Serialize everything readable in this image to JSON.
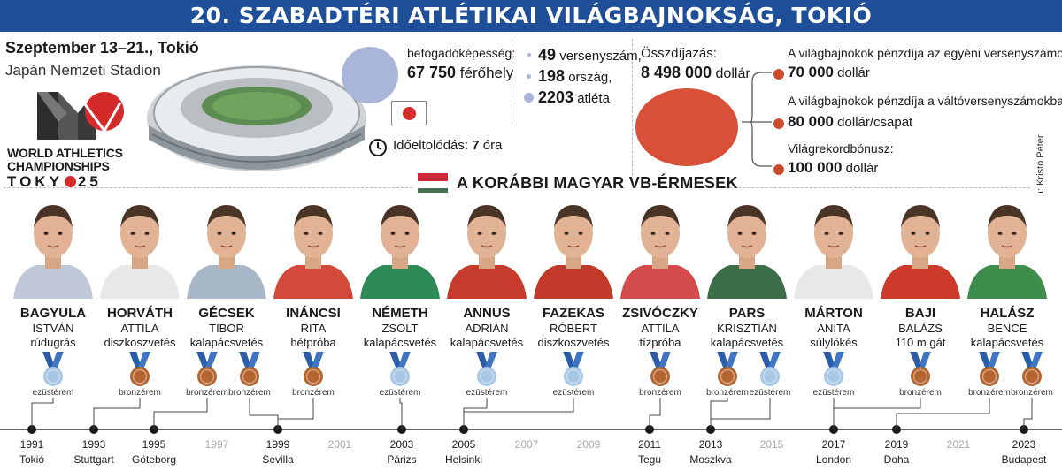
{
  "header": {
    "title": "20. SZABADTÉRI ATLÉTIKAI VILÁGBAJNOKSÁG, TOKIÓ"
  },
  "event": {
    "dates": "Szeptember 13–21., Tokió",
    "venue": "Japán Nemzeti Stadion"
  },
  "logo": {
    "line1": "WORLD ATHLETICS",
    "line2": "CHAMPIONSHIPS",
    "tokyo_left": "TOKY",
    "tokyo_right": "25"
  },
  "capacity": {
    "label": "befogadóképesség:",
    "value": "67 750",
    "unit": "férőhely"
  },
  "timezone": {
    "label": "Időeltolódás:",
    "value": "7",
    "unit": "óra"
  },
  "stats": {
    "events_value": "49",
    "events_label": "versenyszám,",
    "countries_value": "198",
    "countries_label": "ország,",
    "athletes_value": "2203",
    "athletes_label": "atléta"
  },
  "prize": {
    "title": "Összdíjazás:",
    "total_value": "8 498 000",
    "total_unit": "dollár",
    "items": [
      {
        "label": "A világbajnokok pénzdíja az egyéni versenyszámokban:",
        "value": "70 000",
        "unit": "dollár"
      },
      {
        "label": "A világbajnokok pénzdíja a váltóversenyszámokban:",
        "value": "80 000",
        "unit": "dollár/csapat"
      },
      {
        "label": "Világrekordbónusz:",
        "value": "100 000",
        "unit": "dollár"
      }
    ]
  },
  "credit": "NS-grafika: Kristó Péter",
  "medalists_title": "A KORÁBBI MAGYAR VB-ÉRMESEK",
  "athletes": [
    {
      "last": "BAGYULA",
      "first": "ISTVÁN",
      "event": "rúdugrás"
    },
    {
      "last": "HORVÁTH",
      "first": "ATTILA",
      "event": "diszkoszvetés"
    },
    {
      "last": "GÉCSEK",
      "first": "TIBOR",
      "event": "kalapácsvetés"
    },
    {
      "last": "INÁNCSI",
      "first": "RITA",
      "event": "hétpróba"
    },
    {
      "last": "NÉMETH",
      "first": "ZSOLT",
      "event": "kalapácsvetés"
    },
    {
      "last": "ANNUS",
      "first": "ADRIÁN",
      "event": "kalapácsvetés"
    },
    {
      "last": "FAZEKAS",
      "first": "RÓBERT",
      "event": "diszkoszvetés"
    },
    {
      "last": "ZSIVÓCZKY",
      "first": "ATTILA",
      "event": "tízpróba"
    },
    {
      "last": "PARS",
      "first": "KRISZTIÁN",
      "event": "kalapácsvetés"
    },
    {
      "last": "MÁRTON",
      "first": "ANITA",
      "event": "súlylökés"
    },
    {
      "last": "BAJI",
      "first": "BALÁZS",
      "event": "110 m gát"
    },
    {
      "last": "HALÁSZ",
      "first": "BENCE",
      "event": "kalapácsvetés"
    }
  ],
  "medals": [
    {
      "type": "silver",
      "label": "ezüstérem"
    },
    {
      "type": "bronze",
      "label": "bronzérem"
    },
    {
      "type": "bronze",
      "label": "bronzérem"
    },
    {
      "type": "bronze",
      "label": "bronzérem"
    },
    {
      "type": "bronze",
      "label": "bronzérem"
    },
    {
      "type": "silver",
      "label": "ezüstérem"
    },
    {
      "type": "silver",
      "label": "ezüstérem"
    },
    {
      "type": "silver",
      "label": "ezüstérem"
    },
    {
      "type": "bronze",
      "label": "bronzérem"
    },
    {
      "type": "bronze",
      "label": "bronzérem"
    },
    {
      "type": "silver",
      "label": "ezüstérem"
    },
    {
      "type": "silver",
      "label": "ezüstérem"
    },
    {
      "type": "bronze",
      "label": "bronzérem"
    },
    {
      "type": "bronze",
      "label": "bronzérem"
    },
    {
      "type": "bronze",
      "label": "bronzérem"
    }
  ],
  "timeline": [
    {
      "year": "1991",
      "city": "Tokió",
      "active": true
    },
    {
      "year": "1993",
      "city": "Stuttgart",
      "active": true
    },
    {
      "year": "1995",
      "city": "Göteborg",
      "active": true
    },
    {
      "year": "1997",
      "city": "",
      "active": false
    },
    {
      "year": "1999",
      "city": "Sevilla",
      "active": true
    },
    {
      "year": "2001",
      "city": "",
      "active": false
    },
    {
      "year": "2003",
      "city": "Párizs",
      "active": true
    },
    {
      "year": "2005",
      "city": "Helsinki",
      "active": true
    },
    {
      "year": "2007",
      "city": "",
      "active": false
    },
    {
      "year": "2009",
      "city": "",
      "active": false
    },
    {
      "year": "2011",
      "city": "Tegu",
      "active": true
    },
    {
      "year": "2013",
      "city": "Moszkva",
      "active": true
    },
    {
      "year": "2015",
      "city": "",
      "active": false
    },
    {
      "year": "2017",
      "city": "London",
      "active": true
    },
    {
      "year": "2019",
      "city": "Doha",
      "active": true
    },
    {
      "year": "2021",
      "city": "",
      "active": false
    },
    {
      "year": "2023",
      "city": "Budapest",
      "active": true
    }
  ],
  "colors": {
    "title_bg": "#1f4f99",
    "bronze": "#b5652f",
    "silver": "#a7c7e4",
    "ribbon": "#2a5ca8",
    "prize_red": "#d8503a",
    "capacity_blue": "#a9b5d9"
  }
}
